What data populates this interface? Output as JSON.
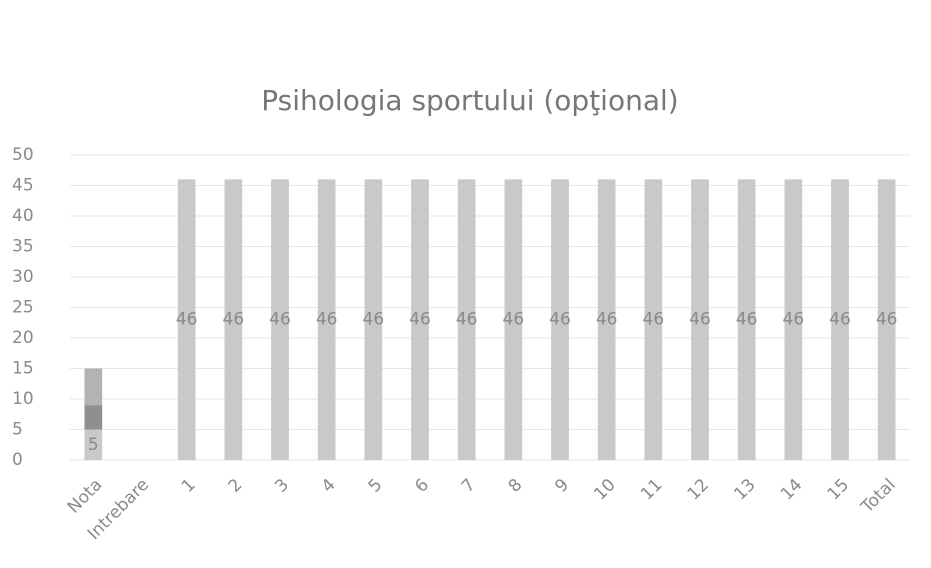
{
  "chart_data": {
    "type": "stacked_bar",
    "title": "Psihologia sportului (opţional)",
    "categories": [
      "Nota",
      "Intrebare",
      "1",
      "2",
      "3",
      "4",
      "5",
      "6",
      "7",
      "8",
      "9",
      "10",
      "11",
      "12",
      "13",
      "14",
      "15",
      "Total"
    ],
    "series": [
      {
        "color": "#c9c9c9",
        "show_labels": true,
        "values": [
          5,
          null,
          46,
          46,
          46,
          46,
          46,
          46,
          46,
          46,
          46,
          46,
          46,
          46,
          46,
          46,
          46,
          46
        ]
      },
      {
        "color": "#8f8f8f",
        "show_labels": false,
        "values": [
          4,
          null,
          null,
          null,
          null,
          null,
          null,
          null,
          null,
          null,
          null,
          null,
          null,
          null,
          null,
          null,
          null,
          null
        ]
      },
      {
        "color": "#b3b3b3",
        "show_labels": false,
        "values": [
          6,
          null,
          null,
          null,
          null,
          null,
          null,
          null,
          null,
          null,
          null,
          null,
          null,
          null,
          null,
          null,
          null,
          null
        ]
      }
    ],
    "ylim": [
      0,
      50
    ],
    "yticks": [
      0,
      5,
      10,
      15,
      20,
      25,
      30,
      35,
      40,
      45,
      50
    ],
    "grid": true
  }
}
